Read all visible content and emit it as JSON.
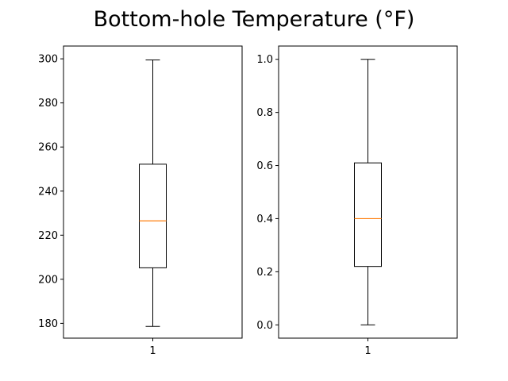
{
  "figure": {
    "title": "Bottom-hole Temperature (°F)"
  },
  "chart_data": [
    {
      "type": "boxplot",
      "categories": [
        "1"
      ],
      "ylim": [
        173.3,
        305.8
      ],
      "yticks": [
        180,
        200,
        220,
        240,
        260,
        280,
        300
      ],
      "ytick_labels": [
        "180",
        "200",
        "220",
        "240",
        "260",
        "280",
        "300"
      ],
      "xtick_labels": [
        "1"
      ],
      "grid": false,
      "box": {
        "whisker_low": 178.6,
        "q1": 205.2,
        "median": 226.5,
        "q3": 252.2,
        "whisker_high": 299.5
      },
      "colors": {
        "box": "#000000",
        "median": "#ff7f0e"
      }
    },
    {
      "type": "boxplot",
      "categories": [
        "1"
      ],
      "ylim": [
        -0.05,
        1.05
      ],
      "yticks": [
        0.0,
        0.2,
        0.4,
        0.6,
        0.8,
        1.0
      ],
      "ytick_labels": [
        "0.0",
        "0.2",
        "0.4",
        "0.6",
        "0.8",
        "1.0"
      ],
      "xtick_labels": [
        "1"
      ],
      "grid": false,
      "box": {
        "whisker_low": 0.0,
        "q1": 0.22,
        "median": 0.4,
        "q3": 0.61,
        "whisker_high": 1.0
      },
      "colors": {
        "box": "#000000",
        "median": "#ff7f0e"
      }
    }
  ]
}
